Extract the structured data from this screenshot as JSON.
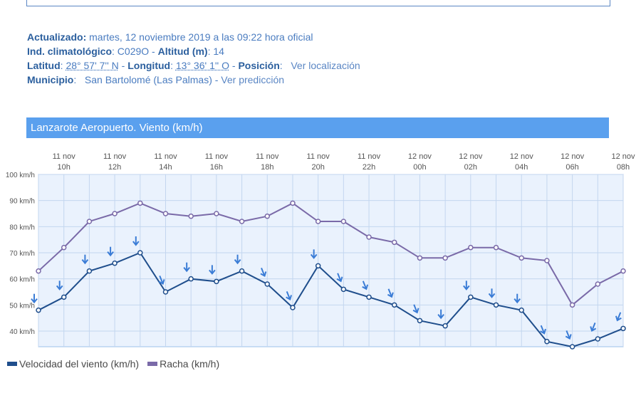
{
  "info": {
    "updated_label": "Actualizado:",
    "updated_value": " martes, 12 noviembre 2019 a las 09:22 hora oficial",
    "climato_label": "Ind. climatológico",
    "climato_value": ": C029O - ",
    "altitude_label": "Altitud (m)",
    "altitude_value": ": 14",
    "lat_label": "Latitud",
    "lat_sep": ": ",
    "lat_value": "28° 57' 7'' N",
    "lon_sep1": " - ",
    "lon_label": "Longitud",
    "lon_sep2": ": ",
    "lon_value": "13° 36' 1'' O",
    "pos_sep": " - ",
    "pos_label": "Posición",
    "pos_sep2": ":   ",
    "pos_link": "Ver localización",
    "mun_label": "Municipio",
    "mun_sep": ":   ",
    "mun_value": "San Bartolomé (Las Palmas) - ",
    "mun_link": "Ver predicción"
  },
  "chart_header": "Lanzarote Aeropuerto. Viento (km/h)",
  "legend": {
    "speed": "Velocidad del viento (km/h)",
    "gust": "Racha (km/h)"
  },
  "colors": {
    "speed": "#1f4e8c",
    "gust": "#7a6aa8",
    "arrow": "#3a7cd6",
    "plot_bg": "#eaf2fd",
    "header": "#5aa0ee"
  },
  "chart_data": {
    "type": "line",
    "title": "Lanzarote Aeropuerto. Viento (km/h)",
    "x_ticks": [
      {
        "day": "11 nov",
        "hour": "10h",
        "index": 1
      },
      {
        "day": "11 nov",
        "hour": "12h",
        "index": 3
      },
      {
        "day": "11 nov",
        "hour": "14h",
        "index": 5
      },
      {
        "day": "11 nov",
        "hour": "16h",
        "index": 7
      },
      {
        "day": "11 nov",
        "hour": "18h",
        "index": 9
      },
      {
        "day": "11 nov",
        "hour": "20h",
        "index": 11
      },
      {
        "day": "11 nov",
        "hour": "22h",
        "index": 13
      },
      {
        "day": "12 nov",
        "hour": "00h",
        "index": 15
      },
      {
        "day": "12 nov",
        "hour": "02h",
        "index": 17
      },
      {
        "day": "12 nov",
        "hour": "04h",
        "index": 19
      },
      {
        "day": "12 nov",
        "hour": "06h",
        "index": 21
      },
      {
        "day": "12 nov",
        "hour": "08h",
        "index": 23
      }
    ],
    "y_ticks": [
      "40 km/h",
      "50 km/h",
      "60 km/h",
      "70 km/h",
      "80 km/h",
      "90 km/h",
      "100 km/h"
    ],
    "ylim": [
      34,
      100
    ],
    "y_tick_values": [
      40,
      50,
      60,
      70,
      80,
      90,
      100
    ],
    "grid": true,
    "legend_position": "bottom-left",
    "series": [
      {
        "name": "Velocidad del viento (km/h)",
        "values": [
          48,
          53,
          63,
          66,
          70,
          55,
          60,
          59,
          63,
          58,
          49,
          65,
          56,
          53,
          50,
          44,
          42,
          53,
          50,
          48,
          36,
          34,
          37,
          41
        ],
        "directions": [
          "N",
          "N",
          "N",
          "N",
          "N",
          "NNW",
          "N",
          "N",
          "N",
          "NNW",
          "NNW",
          "N",
          "NNW",
          "NNW",
          "NNW",
          "NNW",
          "N",
          "N",
          "N",
          "N",
          "NNW",
          "NNW",
          "NNE",
          "NNE"
        ]
      },
      {
        "name": "Racha (km/h)",
        "values": [
          63,
          72,
          82,
          85,
          89,
          85,
          84,
          85,
          82,
          84,
          89,
          82,
          82,
          76,
          74,
          68,
          68,
          72,
          72,
          68,
          67,
          50,
          58,
          63
        ]
      }
    ]
  }
}
